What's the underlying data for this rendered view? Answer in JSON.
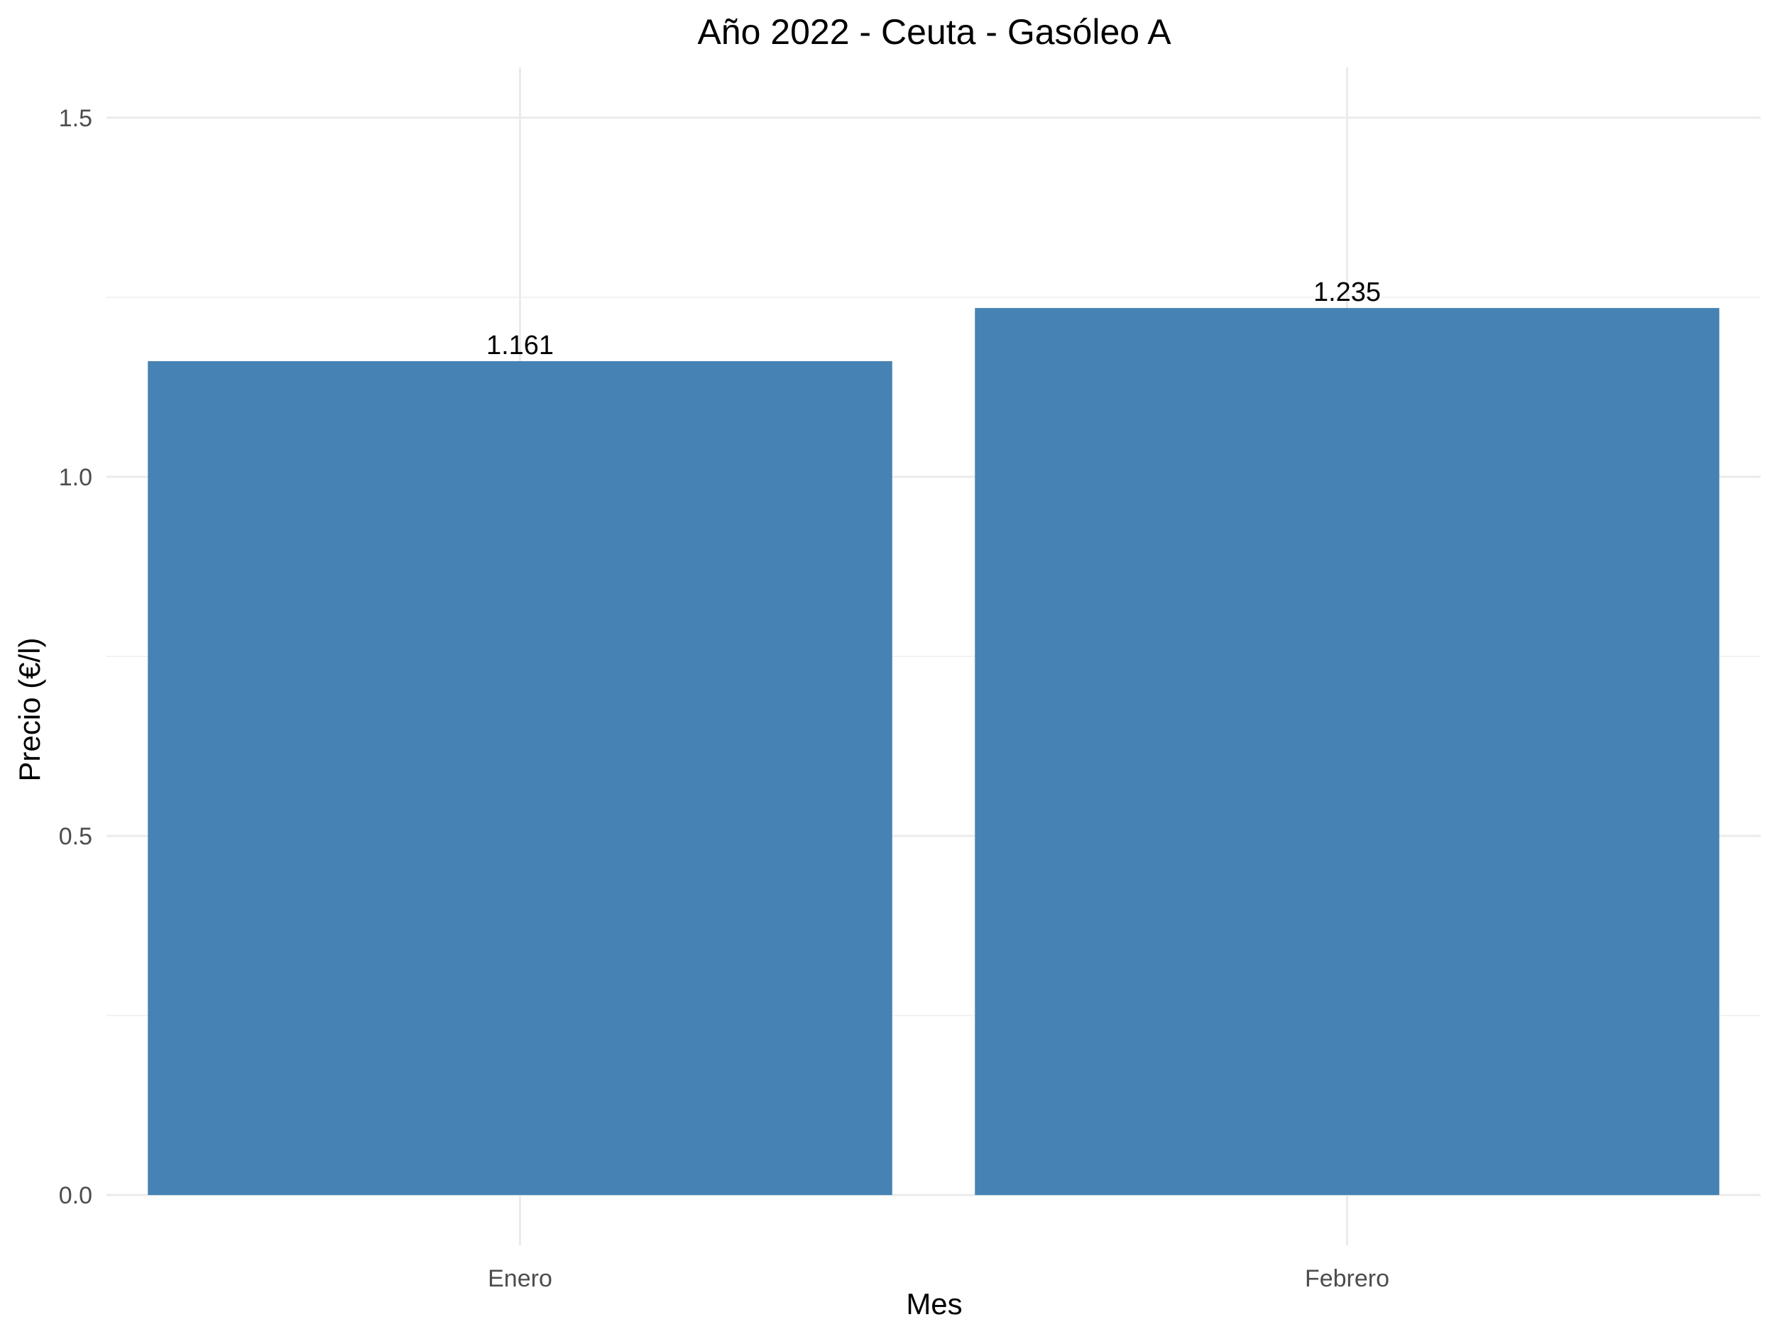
{
  "chart_data": {
    "type": "bar",
    "title": "Año 2022 - Ceuta - Gasóleo A",
    "xlabel": "Mes",
    "ylabel": "Precio (€/l)",
    "categories": [
      "Enero",
      "Febrero"
    ],
    "values": [
      1.161,
      1.235
    ],
    "value_labels": [
      "1.161",
      "1.235"
    ],
    "yticks": [
      0.0,
      0.5,
      1.0,
      1.5
    ],
    "ytick_labels": [
      "0.0",
      "0.5",
      "1.0",
      "1.5"
    ],
    "ylim": [
      -0.07,
      1.57
    ],
    "grid": true,
    "legend": "none",
    "bar_color": "#4682B4"
  }
}
